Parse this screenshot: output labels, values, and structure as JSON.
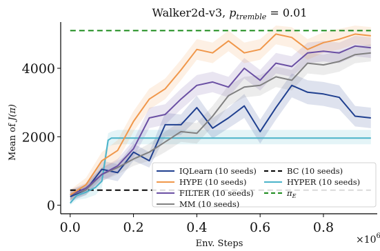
{
  "chart_data": {
    "type": "line",
    "title_main": "Walker2d-v3, ",
    "title_math": "p",
    "title_sub": "tremble",
    "title_rest": " = 0.01",
    "xlabel": "Env. Steps",
    "ylabel_prefix": "Mean of ",
    "ylabel_math": "J(π)",
    "x_offset_text": "×10",
    "x_offset_exp": "6",
    "xlim": [
      -0.03,
      0.97
    ],
    "ylim": [
      -250,
      5350
    ],
    "xticks": [
      0.0,
      0.2,
      0.4,
      0.6,
      0.8
    ],
    "xtick_labels": [
      "0.0",
      "0.2",
      "0.4",
      "0.6",
      "0.8"
    ],
    "yticks": [
      0,
      2000,
      4000
    ],
    "ytick_labels": [
      "0",
      "2000",
      "4000"
    ],
    "legend_placement": "lower-right",
    "grid": false,
    "series": [
      {
        "name": "BC (10 seeds)",
        "color": "#000000",
        "dash": "8,5",
        "band": false,
        "x": [
          0.0,
          0.95
        ],
        "y": [
          440,
          440
        ],
        "lo": [],
        "hi": []
      },
      {
        "name": "π_E",
        "color": "#1a8a1a",
        "dash": "8,5",
        "band": false,
        "x": [
          0.0,
          0.95
        ],
        "y": [
          5100,
          5100
        ],
        "lo": [],
        "hi": []
      },
      {
        "name": "HYPER (10 seeds)",
        "color": "#4ab3c9",
        "dash": "",
        "band": true,
        "x": [
          0.0,
          0.02,
          0.05,
          0.08,
          0.1,
          0.12,
          0.13,
          0.15,
          0.95
        ],
        "y": [
          60,
          280,
          380,
          520,
          700,
          1900,
          1960,
          1960,
          1960
        ],
        "lo": [
          0,
          150,
          200,
          300,
          500,
          1700,
          1750,
          1780,
          1780
        ],
        "hi": [
          200,
          420,
          560,
          740,
          950,
          2100,
          2150,
          2200,
          2200
        ]
      },
      {
        "name": "IQLearn (10 seeds)",
        "color": "#1f3f8f",
        "dash": "",
        "band": true,
        "x": [
          0.0,
          0.05,
          0.1,
          0.15,
          0.2,
          0.25,
          0.3,
          0.35,
          0.4,
          0.45,
          0.5,
          0.55,
          0.6,
          0.65,
          0.7,
          0.75,
          0.8,
          0.85,
          0.9,
          0.95
        ],
        "y": [
          250,
          450,
          1050,
          950,
          1550,
          1300,
          2350,
          2350,
          2850,
          2250,
          2550,
          2900,
          2150,
          2850,
          3500,
          3300,
          3250,
          3150,
          2600,
          2550
        ],
        "lo": [
          100,
          300,
          800,
          700,
          1300,
          1100,
          2000,
          2050,
          2500,
          1950,
          2250,
          2550,
          1800,
          2500,
          3150,
          2950,
          2900,
          2800,
          2300,
          2250
        ],
        "hi": [
          400,
          600,
          1300,
          1200,
          1800,
          1550,
          2700,
          2650,
          3200,
          2550,
          2850,
          3250,
          2500,
          3200,
          3850,
          3650,
          3600,
          3500,
          2900,
          2850
        ]
      },
      {
        "name": "MM (10 seeds)",
        "color": "#808080",
        "dash": "",
        "band": true,
        "x": [
          0.0,
          0.05,
          0.1,
          0.15,
          0.2,
          0.25,
          0.3,
          0.35,
          0.4,
          0.45,
          0.5,
          0.55,
          0.6,
          0.65,
          0.7,
          0.75,
          0.8,
          0.85,
          0.9,
          0.95
        ],
        "y": [
          300,
          450,
          900,
          1100,
          1350,
          1550,
          1850,
          2150,
          2100,
          2600,
          3200,
          3450,
          3500,
          3750,
          3650,
          4150,
          4100,
          4200,
          4400,
          4450
        ],
        "lo": [
          150,
          300,
          700,
          900,
          1150,
          1300,
          1550,
          1850,
          1800,
          2300,
          2900,
          3150,
          3200,
          3450,
          3350,
          3850,
          3800,
          3900,
          4150,
          4200
        ],
        "hi": [
          450,
          600,
          1100,
          1300,
          1550,
          1800,
          2150,
          2450,
          2400,
          2900,
          3500,
          3750,
          3800,
          4050,
          3950,
          4450,
          4400,
          4500,
          4650,
          4700
        ]
      },
      {
        "name": "FILTER (10 seeds)",
        "color": "#6a4fa3",
        "dash": "",
        "band": true,
        "x": [
          0.0,
          0.05,
          0.1,
          0.15,
          0.2,
          0.25,
          0.3,
          0.35,
          0.4,
          0.45,
          0.5,
          0.55,
          0.6,
          0.65,
          0.7,
          0.75,
          0.8,
          0.85,
          0.9,
          0.95
        ],
        "y": [
          300,
          500,
          900,
          1150,
          1650,
          2550,
          2650,
          3100,
          3500,
          3600,
          3450,
          4000,
          3650,
          4150,
          4050,
          4450,
          4500,
          4450,
          4650,
          4600
        ],
        "lo": [
          150,
          350,
          700,
          950,
          1400,
          2250,
          2350,
          2800,
          3200,
          3300,
          3150,
          3700,
          3350,
          3850,
          3750,
          4150,
          4200,
          4150,
          4350,
          4300
        ],
        "hi": [
          450,
          650,
          1100,
          1350,
          1900,
          2850,
          2950,
          3400,
          3800,
          3900,
          3750,
          4300,
          3950,
          4450,
          4350,
          4750,
          4800,
          4750,
          4950,
          4900
        ]
      },
      {
        "name": "HYPE (10 seeds)",
        "color": "#f0974a",
        "dash": "",
        "band": true,
        "x": [
          0.0,
          0.05,
          0.1,
          0.15,
          0.2,
          0.25,
          0.3,
          0.35,
          0.4,
          0.45,
          0.5,
          0.55,
          0.6,
          0.65,
          0.7,
          0.75,
          0.8,
          0.85,
          0.9,
          0.95
        ],
        "y": [
          300,
          600,
          1300,
          1600,
          2450,
          3100,
          3400,
          3950,
          4550,
          4450,
          4800,
          4450,
          4550,
          5000,
          4900,
          4550,
          4750,
          4850,
          5000,
          4950
        ],
        "lo": [
          150,
          400,
          1050,
          1300,
          2150,
          2800,
          3100,
          3650,
          4250,
          4150,
          4500,
          4150,
          4250,
          4700,
          4600,
          4250,
          4450,
          4550,
          4700,
          4650
        ],
        "hi": [
          450,
          800,
          1550,
          1900,
          2750,
          3400,
          3700,
          4250,
          4850,
          4750,
          5100,
          4750,
          4850,
          5250,
          5200,
          4850,
          5050,
          5150,
          5250,
          5200
        ]
      }
    ],
    "legend_entries": [
      {
        "label": "IQLearn (10 seeds)",
        "color": "#1f3f8f",
        "dash": ""
      },
      {
        "label": "BC (10 seeds)",
        "color": "#000000",
        "dash": "6,4"
      },
      {
        "label": "HYPE (10 seeds)",
        "color": "#f0974a",
        "dash": ""
      },
      {
        "label": "HYPER (10 seeds)",
        "color": "#4ab3c9",
        "dash": ""
      },
      {
        "label": "FILTER (10 seeds)",
        "color": "#6a4fa3",
        "dash": ""
      },
      {
        "label": "π_E",
        "color": "#1a8a1a",
        "dash": "6,4"
      },
      {
        "label": "MM (10 seeds)",
        "color": "#808080",
        "dash": ""
      }
    ]
  }
}
